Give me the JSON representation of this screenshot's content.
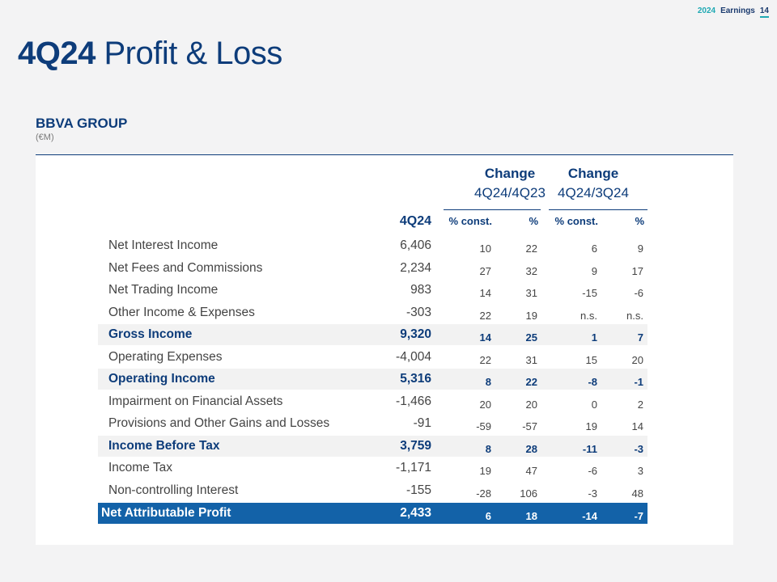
{
  "header": {
    "year": "2024",
    "label": "Earnings",
    "page": "14"
  },
  "title": {
    "bold": "4Q24",
    "rest": " Profit & Loss"
  },
  "section": {
    "title": "BBVA GROUP",
    "unit": "(€M)"
  },
  "table": {
    "group1": {
      "line1": "Change",
      "line2": "4Q24/4Q23"
    },
    "group2": {
      "line1": "Change",
      "line2": "4Q24/3Q24"
    },
    "col_period": "4Q24",
    "col_const": "% const.",
    "col_pct": "%",
    "rows": [
      {
        "label": "Net Interest Income",
        "q": "6,406",
        "c1": "10",
        "c2": "22",
        "c3": "6",
        "c4": "9",
        "style": "normal"
      },
      {
        "label": "Net Fees and Commissions",
        "q": "2,234",
        "c1": "27",
        "c2": "32",
        "c3": "9",
        "c4": "17",
        "style": "normal"
      },
      {
        "label": "Net Trading Income",
        "q": "983",
        "c1": "14",
        "c2": "31",
        "c3": "-15",
        "c4": "-6",
        "style": "normal"
      },
      {
        "label": "Other Income & Expenses",
        "q": "-303",
        "c1": "22",
        "c2": "19",
        "c3": "n.s.",
        "c4": "n.s.",
        "style": "normal"
      },
      {
        "label": "Gross Income",
        "q": "9,320",
        "c1": "14",
        "c2": "25",
        "c3": "1",
        "c4": "7",
        "style": "highlight"
      },
      {
        "label": "Operating Expenses",
        "q": "-4,004",
        "c1": "22",
        "c2": "31",
        "c3": "15",
        "c4": "20",
        "style": "normal"
      },
      {
        "label": "Operating Income",
        "q": "5,316",
        "c1": "8",
        "c2": "22",
        "c3": "-8",
        "c4": "-1",
        "style": "highlight"
      },
      {
        "label": "Impairment on Financial Assets",
        "q": "-1,466",
        "c1": "20",
        "c2": "20",
        "c3": "0",
        "c4": "2",
        "style": "normal"
      },
      {
        "label": "Provisions and Other Gains and Losses",
        "q": "-91",
        "c1": "-59",
        "c2": "-57",
        "c3": "19",
        "c4": "14",
        "style": "normal"
      },
      {
        "label": "Income Before Tax",
        "q": "3,759",
        "c1": "8",
        "c2": "28",
        "c3": "-11",
        "c4": "-3",
        "style": "highlight"
      },
      {
        "label": "Income Tax",
        "q": "-1,171",
        "c1": "19",
        "c2": "47",
        "c3": "-6",
        "c4": "3",
        "style": "normal"
      },
      {
        "label": "Non-controlling Interest",
        "q": "-155",
        "c1": "-28",
        "c2": "106",
        "c3": "-3",
        "c4": "48",
        "style": "normal"
      },
      {
        "label": "Net Attributable Profit",
        "q": "2,433",
        "c1": "6",
        "c2": "18",
        "c3": "-14",
        "c4": "-7",
        "style": "net"
      }
    ]
  }
}
